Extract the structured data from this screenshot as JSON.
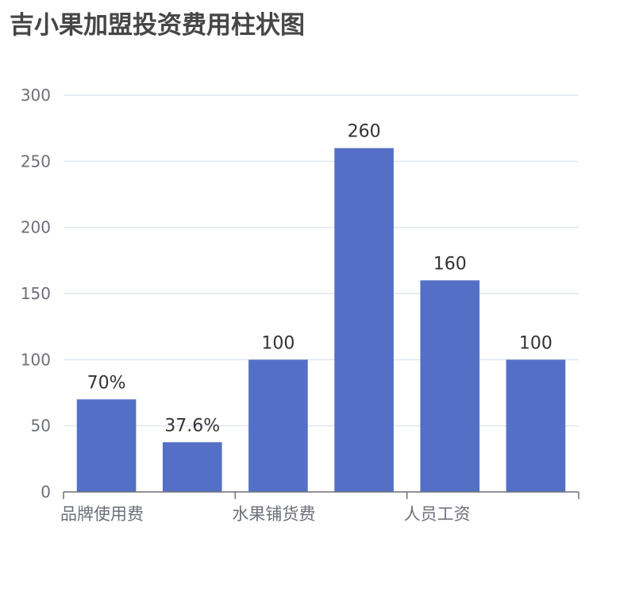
{
  "chart_data": {
    "type": "bar",
    "title": "吉小果加盟投资费用柱状图",
    "xlabel": "",
    "ylabel": "",
    "ylim": [
      0,
      300
    ],
    "yticks": [
      0,
      50,
      100,
      150,
      200,
      250,
      300
    ],
    "grid": true,
    "legend": "none",
    "categories": [
      "品牌使用费",
      "",
      "水果铺货费",
      "",
      "人员工资",
      ""
    ],
    "axis_labels": [
      "品牌使用费",
      "水果铺货费",
      "人员工资"
    ],
    "values": [
      70,
      37.6,
      100,
      260,
      160,
      100
    ],
    "data_labels": [
      "70%",
      "37.6%",
      "100",
      "260",
      "160",
      "100"
    ],
    "bar_color": "#5470c6"
  }
}
